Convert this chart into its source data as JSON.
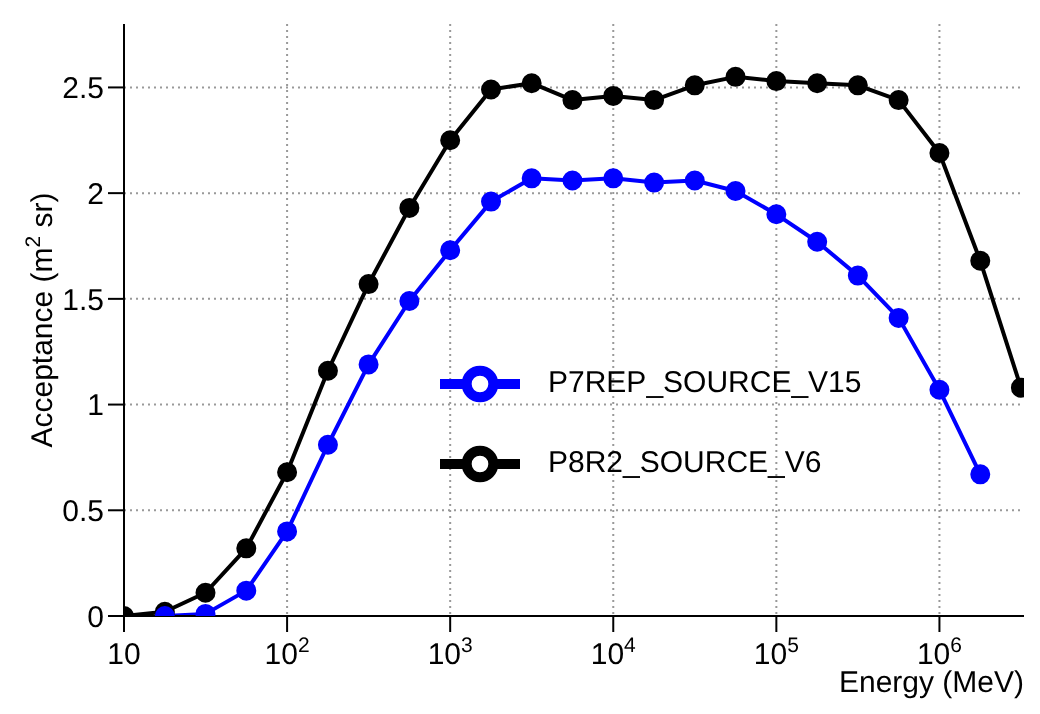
{
  "chart_data": {
    "type": "line",
    "xlabel": "Energy (MeV)",
    "ylabel": "Acceptance (m$^{2}$ sr)",
    "log": "x",
    "grid": true,
    "marker": "circle",
    "line_style": "solid",
    "legend": "right",
    "xlim": [
      10,
      3300000
    ],
    "xticks": [
      10,
      {
        "value": 100,
        "label": "10$^{2}$"
      },
      {
        "value": 1000,
        "label": "10$^{3}$"
      },
      {
        "value": 10000,
        "label": "10$^{4}$"
      },
      {
        "value": 100000,
        "label": "10$^{5}$"
      },
      {
        "value": 1000000,
        "label": "10$^{6}$"
      }
    ],
    "ylim": [
      0,
      2.8
    ],
    "yticks": [
      0,
      0.5,
      1,
      1.5,
      2,
      2.5
    ],
    "x": [
      10,
      17.8,
      31.6,
      56.2,
      100,
      178,
      316,
      562,
      1000,
      1780,
      3160,
      5620,
      10000,
      17800,
      31600,
      56200,
      100000,
      178000,
      316000,
      562000,
      1000000,
      1780000,
      3160000
    ],
    "series": [
      {
        "name": "P8R2_SOURCE_V6",
        "color": "#000000",
        "values": [
          0,
          0.02,
          0.11,
          0.32,
          0.68,
          1.16,
          1.57,
          1.93,
          2.25,
          2.49,
          2.52,
          2.44,
          2.46,
          2.44,
          2.51,
          2.55,
          2.53,
          2.52,
          2.51,
          2.44,
          2.19,
          1.68,
          1.08
        ]
      },
      {
        "name": "P7REP_SOURCE_V15",
        "color": "#0000ff",
        "values": [
          null,
          0,
          0.01,
          0.12,
          0.4,
          0.81,
          1.19,
          1.49,
          1.73,
          1.96,
          2.07,
          2.06,
          2.07,
          2.05,
          2.06,
          2.01,
          1.9,
          1.77,
          1.61,
          1.41,
          1.07,
          0.67,
          null
        ]
      }
    ]
  }
}
